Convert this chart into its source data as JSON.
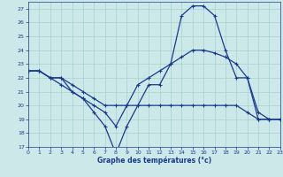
{
  "line1_x": [
    0,
    1,
    2,
    3,
    4,
    5,
    6,
    7,
    8,
    9,
    10,
    11,
    12,
    13,
    14,
    15,
    16,
    17,
    18,
    19,
    20,
    21,
    22,
    23
  ],
  "line1_y": [
    22.5,
    22.5,
    22,
    22,
    21,
    20.5,
    19.5,
    18.5,
    16.5,
    18.5,
    20,
    21.5,
    21.5,
    23,
    26.5,
    27.2,
    27.2,
    26.5,
    24,
    22,
    22,
    19.5,
    19,
    19
  ],
  "line2_x": [
    0,
    1,
    2,
    3,
    4,
    5,
    6,
    7,
    8,
    9,
    10,
    11,
    12,
    13,
    14,
    15,
    16,
    17,
    18,
    19,
    20,
    21,
    22,
    23
  ],
  "line2_y": [
    22.5,
    22.5,
    22,
    22,
    21.5,
    21,
    20.5,
    20,
    20,
    20,
    20,
    20,
    20,
    20,
    20,
    20,
    20,
    20,
    20,
    20,
    19.5,
    19,
    19,
    19
  ],
  "line3_x": [
    0,
    1,
    2,
    3,
    4,
    5,
    6,
    7,
    8,
    9,
    10,
    11,
    12,
    13,
    14,
    15,
    16,
    17,
    18,
    19,
    20,
    21,
    22,
    23
  ],
  "line3_y": [
    22.5,
    22.5,
    22,
    21.5,
    21,
    20.5,
    20,
    19.5,
    18.5,
    20,
    21.5,
    22,
    22.5,
    23,
    23.5,
    24,
    24,
    23.8,
    23.5,
    23,
    22,
    19,
    19,
    19
  ],
  "line_color": "#1a3a8c",
  "bg_color": "#cce8e8",
  "grid_color": "#99cccc",
  "grid_major_color": "#aadddd",
  "xlabel": "Graphe des températures (°c)",
  "xlim": [
    0,
    23
  ],
  "ylim": [
    17,
    27.5
  ],
  "yticks": [
    17,
    18,
    19,
    20,
    21,
    22,
    23,
    24,
    25,
    26,
    27
  ],
  "xticks": [
    0,
    1,
    2,
    3,
    4,
    5,
    6,
    7,
    8,
    9,
    10,
    11,
    12,
    13,
    14,
    15,
    16,
    17,
    18,
    19,
    20,
    21,
    22,
    23
  ],
  "marker": "+",
  "markersize": 3.5,
  "linewidth": 0.9
}
